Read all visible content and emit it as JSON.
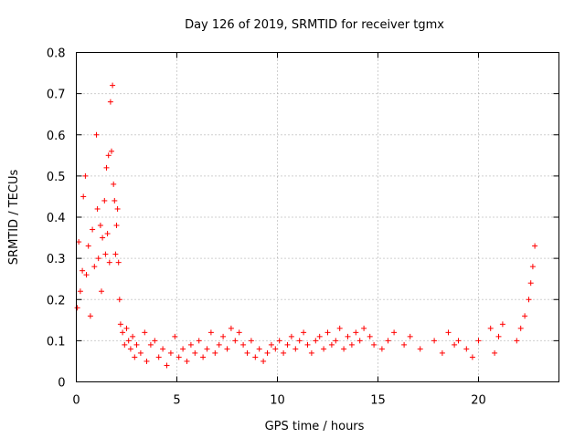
{
  "chart_data": {
    "type": "scatter",
    "title": "Day 126 of 2019, SRMTID for receiver tgmx",
    "xlabel": "GPS time / hours",
    "ylabel": "SRMTID / TECUs",
    "xlim": [
      0,
      24
    ],
    "ylim": [
      0,
      0.8
    ],
    "x_ticks": [
      0,
      5,
      10,
      15,
      20
    ],
    "x_tick_labels": [
      "0",
      "5",
      "10",
      "15",
      "20"
    ],
    "y_ticks": [
      0,
      0.1,
      0.2,
      0.3,
      0.4,
      0.5,
      0.6,
      0.7,
      0.8
    ],
    "y_tick_labels": [
      "0",
      "0.1",
      "0.2",
      "0.3",
      "0.4",
      "0.5",
      "0.6",
      "0.7",
      "0.8"
    ],
    "grid": true,
    "marker": "plus",
    "series": [
      {
        "name": "SRMTID",
        "color": "#ff0000",
        "x": [
          0.05,
          0.12,
          0.2,
          0.3,
          0.35,
          0.45,
          0.5,
          0.6,
          0.7,
          0.8,
          0.9,
          1.0,
          1.05,
          1.1,
          1.2,
          1.25,
          1.3,
          1.4,
          1.45,
          1.5,
          1.55,
          1.6,
          1.65,
          1.7,
          1.75,
          1.8,
          1.85,
          1.9,
          1.95,
          2.0,
          2.05,
          2.1,
          2.15,
          2.2,
          2.3,
          2.4,
          2.5,
          2.6,
          2.7,
          2.8,
          2.9,
          3.0,
          3.2,
          3.4,
          3.5,
          3.7,
          3.9,
          4.1,
          4.3,
          4.5,
          4.7,
          4.9,
          5.1,
          5.3,
          5.5,
          5.7,
          5.9,
          6.1,
          6.3,
          6.5,
          6.7,
          6.9,
          7.1,
          7.3,
          7.5,
          7.7,
          7.9,
          8.1,
          8.3,
          8.5,
          8.7,
          8.9,
          9.1,
          9.3,
          9.5,
          9.7,
          9.9,
          10.1,
          10.3,
          10.5,
          10.7,
          10.9,
          11.1,
          11.3,
          11.5,
          11.7,
          11.9,
          12.1,
          12.3,
          12.5,
          12.7,
          12.9,
          13.1,
          13.3,
          13.5,
          13.7,
          13.9,
          14.1,
          14.3,
          14.6,
          14.8,
          15.2,
          15.5,
          15.8,
          16.3,
          16.6,
          17.1,
          17.8,
          18.2,
          18.5,
          18.8,
          19.0,
          19.4,
          19.7,
          20.0,
          20.6,
          20.8,
          21.0,
          21.2,
          21.9,
          22.1,
          22.3,
          22.5,
          22.6,
          22.7,
          22.8
        ],
        "y": [
          0.18,
          0.34,
          0.22,
          0.27,
          0.45,
          0.5,
          0.26,
          0.33,
          0.16,
          0.37,
          0.28,
          0.6,
          0.42,
          0.3,
          0.38,
          0.22,
          0.35,
          0.44,
          0.31,
          0.52,
          0.36,
          0.55,
          0.29,
          0.68,
          0.56,
          0.72,
          0.48,
          0.44,
          0.31,
          0.38,
          0.42,
          0.29,
          0.2,
          0.14,
          0.12,
          0.09,
          0.13,
          0.1,
          0.08,
          0.11,
          0.06,
          0.09,
          0.07,
          0.12,
          0.05,
          0.09,
          0.1,
          0.06,
          0.08,
          0.04,
          0.07,
          0.11,
          0.06,
          0.08,
          0.05,
          0.09,
          0.07,
          0.1,
          0.06,
          0.08,
          0.12,
          0.07,
          0.09,
          0.11,
          0.08,
          0.13,
          0.1,
          0.12,
          0.09,
          0.07,
          0.1,
          0.06,
          0.08,
          0.05,
          0.07,
          0.09,
          0.08,
          0.1,
          0.07,
          0.09,
          0.11,
          0.08,
          0.1,
          0.12,
          0.09,
          0.07,
          0.1,
          0.11,
          0.08,
          0.12,
          0.09,
          0.1,
          0.13,
          0.08,
          0.11,
          0.09,
          0.12,
          0.1,
          0.13,
          0.11,
          0.09,
          0.08,
          0.1,
          0.12,
          0.09,
          0.11,
          0.08,
          0.1,
          0.07,
          0.12,
          0.09,
          0.1,
          0.08,
          0.06,
          0.1,
          0.13,
          0.07,
          0.11,
          0.14,
          0.1,
          0.13,
          0.16,
          0.2,
          0.24,
          0.28,
          0.33
        ]
      }
    ]
  }
}
